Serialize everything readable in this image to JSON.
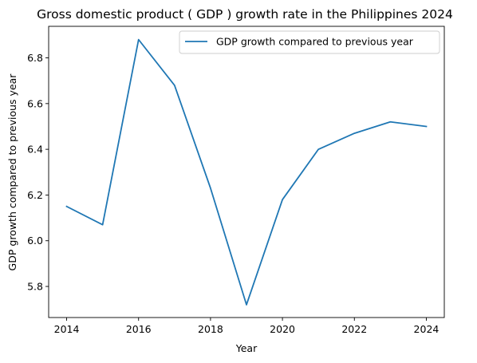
{
  "chart_data": {
    "type": "line",
    "title": "Gross domestic product ( GDP ) growth rate in the Philippines 2024",
    "xlabel": "Year",
    "ylabel": "GDP growth compared to previous year",
    "x": [
      2014,
      2015,
      2016,
      2017,
      2018,
      2019,
      2020,
      2021,
      2022,
      2023,
      2024
    ],
    "series": [
      {
        "name": "GDP growth compared to previous year",
        "color": "#1f77b4",
        "values": [
          6.15,
          6.07,
          6.88,
          6.68,
          6.23,
          5.72,
          6.18,
          6.4,
          6.47,
          6.52,
          6.5
        ]
      }
    ],
    "xticks": [
      "2014",
      "2016",
      "2018",
      "2020",
      "2022",
      "2024"
    ],
    "yticks": [
      "5.8",
      "6.0",
      "6.2",
      "6.4",
      "6.6",
      "6.8"
    ],
    "xlim": [
      2013.5,
      2024.5
    ],
    "ylim": [
      5.664,
      6.938
    ],
    "grid": false,
    "legend_position": "upper-right"
  }
}
